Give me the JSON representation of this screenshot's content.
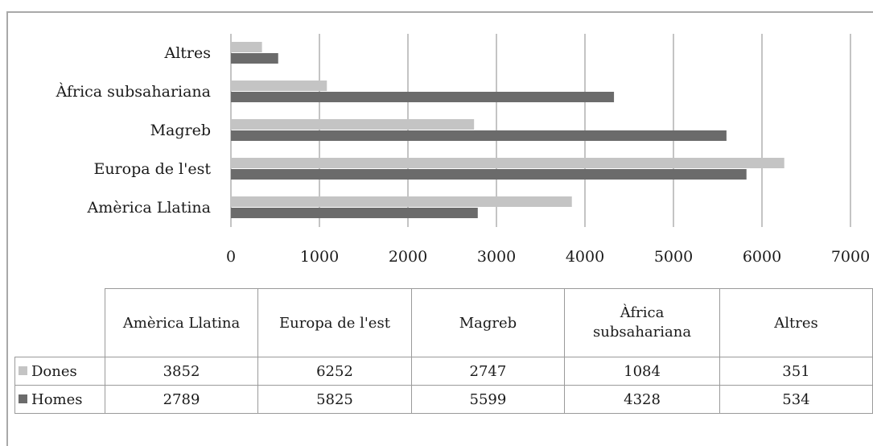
{
  "chart_data": {
    "type": "bar",
    "orientation": "horizontal",
    "categories": [
      "Amèrica Llatina",
      "Europa de l'est",
      "Magreb",
      "Àfrica subsahariana",
      "Altres"
    ],
    "series": [
      {
        "name": "Dones",
        "values": [
          3852,
          6252,
          2747,
          1084,
          351
        ],
        "color": "#c4c4c4"
      },
      {
        "name": "Homes",
        "values": [
          2789,
          5825,
          5599,
          4328,
          534
        ],
        "color": "#6b6b6b"
      }
    ],
    "xlim": [
      0,
      7000
    ],
    "xticks": [
      "0",
      "1000",
      "2000",
      "3000",
      "4000",
      "5000",
      "6000",
      "7000"
    ],
    "grid": "vertical",
    "legend": "data-table-below"
  },
  "table": {
    "headers": [
      "Amèrica Llatina",
      "Europa de l'est",
      "Magreb",
      "Àfrica subsahariana",
      "Altres"
    ],
    "rows": [
      {
        "label": "Dones",
        "values": [
          "3852",
          "6252",
          "2747",
          "1084",
          "351"
        ]
      },
      {
        "label": "Homes",
        "values": [
          "2789",
          "5825",
          "5599",
          "4328",
          "534"
        ]
      }
    ]
  }
}
